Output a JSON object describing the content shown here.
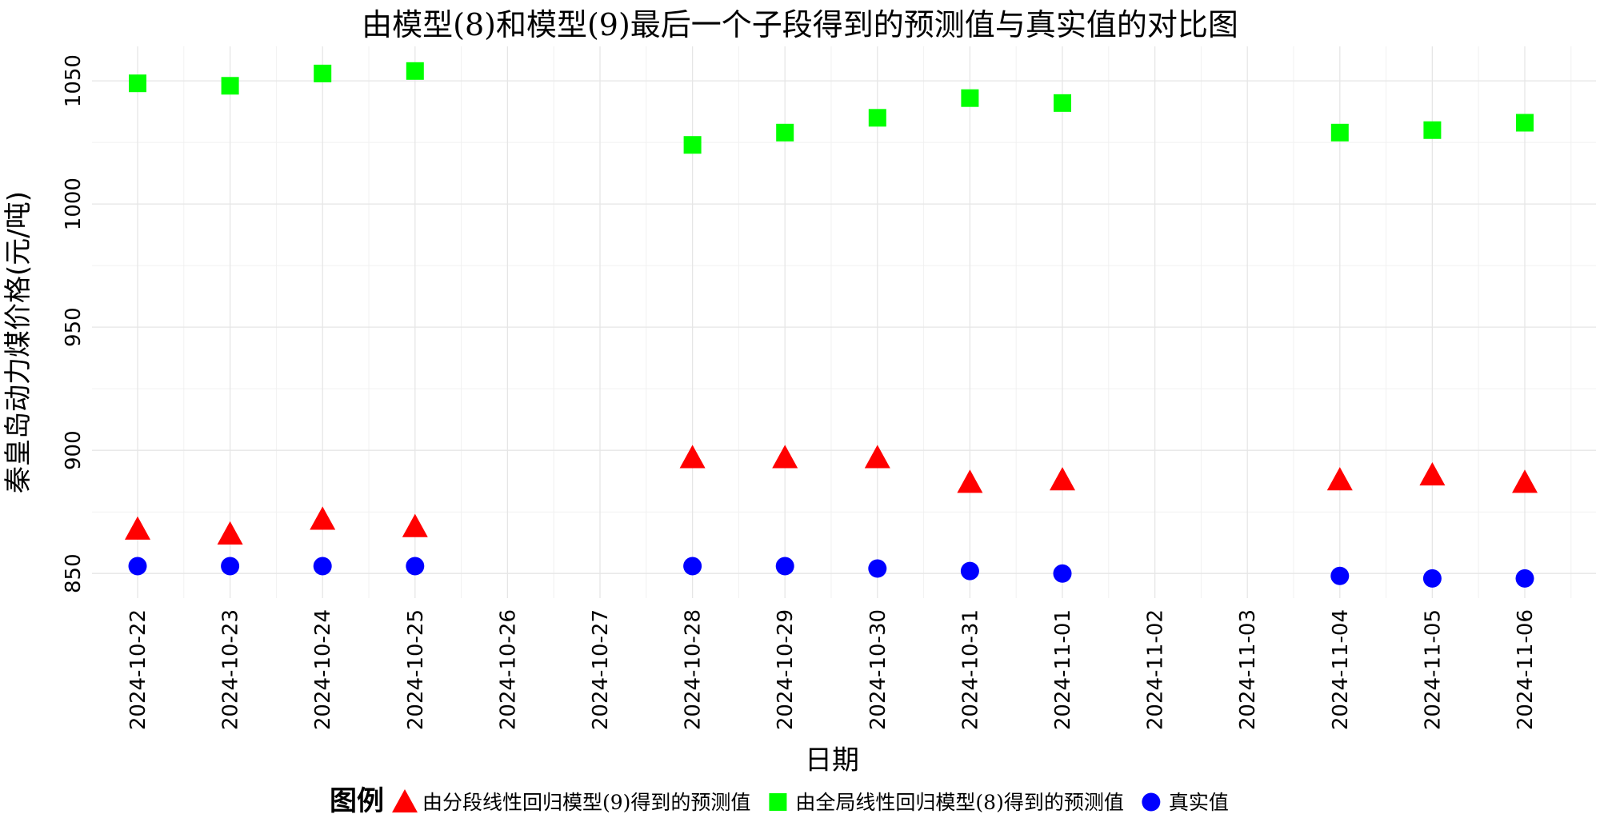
{
  "chart_data": {
    "type": "scatter",
    "title": "由模型(8)和模型(9)最后一个子段得到的预测值与真实值的对比图",
    "xlabel": "日期",
    "ylabel": "秦皇岛动力煤价格(元/吨)",
    "categories": [
      "2024-10-22",
      "2024-10-23",
      "2024-10-24",
      "2024-10-25",
      "2024-10-26",
      "2024-10-27",
      "2024-10-28",
      "2024-10-29",
      "2024-10-30",
      "2024-10-31",
      "2024-11-01",
      "2024-11-02",
      "2024-11-03",
      "2024-11-04",
      "2024-11-05",
      "2024-11-06"
    ],
    "ylim": [
      840,
      1064
    ],
    "yticks": [
      850,
      900,
      950,
      1000,
      1050
    ],
    "grid": true,
    "legend_title": "图例",
    "legend_position": "bottom",
    "series": [
      {
        "name": "由分段线性回归模型(9)得到的预测值",
        "marker": "triangle",
        "color": "#ff0000",
        "values": [
          868,
          866,
          872,
          869,
          null,
          null,
          897,
          897,
          897,
          887,
          888,
          null,
          null,
          888,
          890,
          887
        ]
      },
      {
        "name": "由全局线性回归模型(8)得到的预测值",
        "marker": "square",
        "color": "#00ff00",
        "values": [
          1049,
          1048,
          1053,
          1054,
          null,
          null,
          1024,
          1029,
          1035,
          1043,
          1041,
          null,
          null,
          1029,
          1030,
          1033
        ]
      },
      {
        "name": "真实值",
        "marker": "circle",
        "color": "#0000ff",
        "values": [
          853,
          853,
          853,
          853,
          null,
          null,
          853,
          853,
          852,
          851,
          850,
          null,
          null,
          849,
          848,
          848
        ]
      }
    ]
  }
}
